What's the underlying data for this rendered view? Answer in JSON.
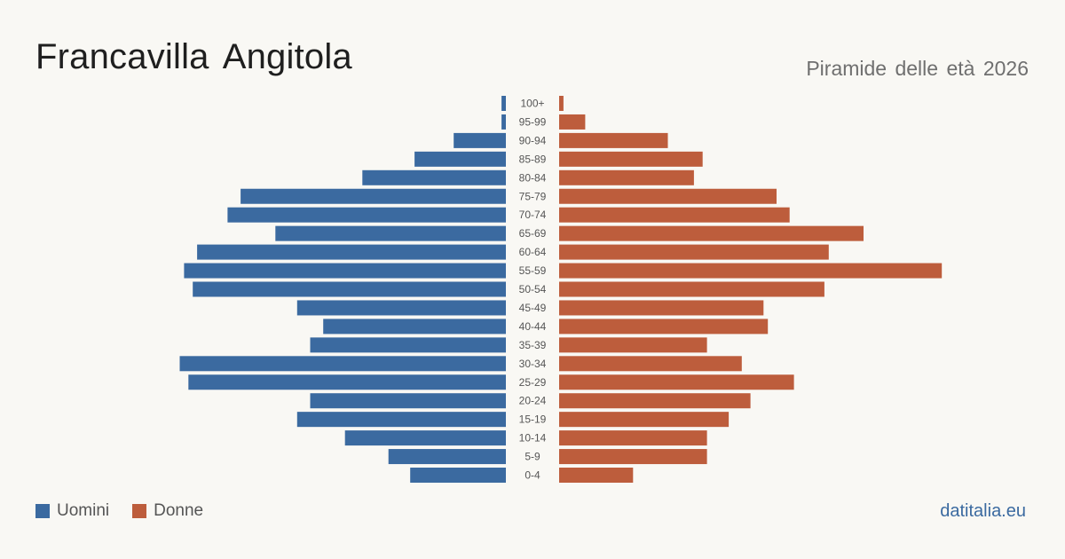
{
  "header": {
    "title": "Francavilla Angitola",
    "subtitle": "Piramide delle età 2026"
  },
  "footer": {
    "source": "datitalia.eu"
  },
  "colors": {
    "men": "#3b6aa0",
    "women": "#bd5d3c",
    "label": "#555555"
  },
  "chart_data": {
    "type": "bar",
    "orientation": "horizontal-pyramid",
    "categories": [
      "100+",
      "95-99",
      "90-94",
      "85-89",
      "80-84",
      "75-79",
      "70-74",
      "65-69",
      "60-64",
      "55-59",
      "50-54",
      "45-49",
      "40-44",
      "35-39",
      "30-34",
      "25-29",
      "20-24",
      "15-19",
      "10-14",
      "5-9",
      "0-4"
    ],
    "series": [
      {
        "name": "Uomini",
        "color": "#3b6aa0",
        "values": [
          1,
          1,
          12,
          21,
          33,
          61,
          64,
          53,
          71,
          74,
          72,
          48,
          42,
          45,
          75,
          73,
          45,
          48,
          37,
          27,
          22
        ]
      },
      {
        "name": "Donne",
        "color": "#bd5d3c",
        "values": [
          1,
          6,
          25,
          33,
          31,
          50,
          53,
          70,
          62,
          88,
          61,
          47,
          48,
          34,
          42,
          54,
          44,
          39,
          34,
          34,
          17
        ]
      }
    ],
    "legend": {
      "placement": "bottom-left",
      "entries": [
        "Uomini",
        "Donne"
      ]
    },
    "grid": false
  }
}
